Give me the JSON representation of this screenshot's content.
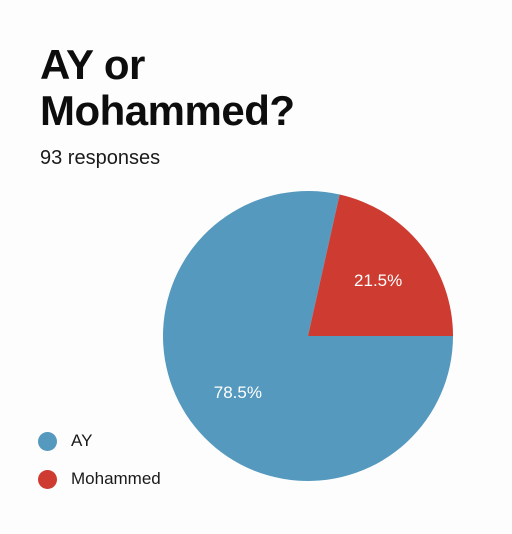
{
  "header": {
    "title": "AY or Mohammed?",
    "responses": "93 responses"
  },
  "chart_data": {
    "type": "pie",
    "title": "AY or Mohammed?",
    "slices": [
      {
        "name": "AY",
        "value": 78.5,
        "label": "78.5%",
        "color": "#5599be"
      },
      {
        "name": "Mohammed",
        "value": 21.5,
        "label": "21.5%",
        "color": "#cd3b31"
      }
    ],
    "legend_position": "bottom-left"
  }
}
